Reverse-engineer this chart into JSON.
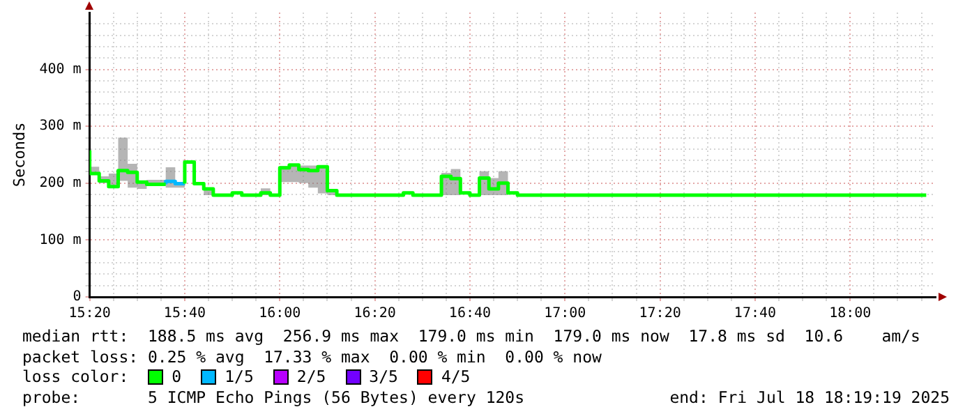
{
  "chart_data": {
    "type": "step",
    "ylabel": "Seconds",
    "x": [
      "2025-07-18T15:20",
      "2025-07-18T15:22",
      "2025-07-18T15:24",
      "2025-07-18T15:26",
      "2025-07-18T15:28",
      "2025-07-18T15:30",
      "2025-07-18T15:32",
      "2025-07-18T15:34",
      "2025-07-18T15:36",
      "2025-07-18T15:38",
      "2025-07-18T15:40",
      "2025-07-18T15:42",
      "2025-07-18T15:44",
      "2025-07-18T15:46",
      "2025-07-18T15:48",
      "2025-07-18T15:50",
      "2025-07-18T15:52",
      "2025-07-18T15:54",
      "2025-07-18T15:56",
      "2025-07-18T15:58",
      "2025-07-18T16:00",
      "2025-07-18T16:02",
      "2025-07-18T16:04",
      "2025-07-18T16:06",
      "2025-07-18T16:08",
      "2025-07-18T16:10",
      "2025-07-18T16:12",
      "2025-07-18T16:14",
      "2025-07-18T16:16",
      "2025-07-18T16:18",
      "2025-07-18T16:20",
      "2025-07-18T16:22",
      "2025-07-18T16:24",
      "2025-07-18T16:26",
      "2025-07-18T16:28",
      "2025-07-18T16:30",
      "2025-07-18T16:32",
      "2025-07-18T16:34",
      "2025-07-18T16:36",
      "2025-07-18T16:38",
      "2025-07-18T16:40",
      "2025-07-18T16:42",
      "2025-07-18T16:44",
      "2025-07-18T16:46",
      "2025-07-18T16:48",
      "2025-07-18T16:50",
      "2025-07-18T16:52",
      "2025-07-18T16:54",
      "2025-07-18T16:56",
      "2025-07-18T16:58",
      "2025-07-18T17:00",
      "2025-07-18T17:02",
      "2025-07-18T17:04",
      "2025-07-18T17:06",
      "2025-07-18T17:08",
      "2025-07-18T17:10",
      "2025-07-18T17:12",
      "2025-07-18T17:14",
      "2025-07-18T17:16",
      "2025-07-18T17:18",
      "2025-07-18T17:20",
      "2025-07-18T17:22",
      "2025-07-18T17:24",
      "2025-07-18T17:26",
      "2025-07-18T17:28",
      "2025-07-18T17:30",
      "2025-07-18T17:32",
      "2025-07-18T17:34",
      "2025-07-18T17:36",
      "2025-07-18T17:38",
      "2025-07-18T17:40",
      "2025-07-18T17:42",
      "2025-07-18T17:44",
      "2025-07-18T17:46",
      "2025-07-18T17:48",
      "2025-07-18T17:50",
      "2025-07-18T17:52",
      "2025-07-18T17:54",
      "2025-07-18T17:56",
      "2025-07-18T17:58",
      "2025-07-18T18:00",
      "2025-07-18T18:02",
      "2025-07-18T18:04",
      "2025-07-18T18:06",
      "2025-07-18T18:08",
      "2025-07-18T18:10",
      "2025-07-18T18:12",
      "2025-07-18T18:14",
      "2025-07-18T18:16"
    ],
    "series": [
      {
        "name": "0",
        "color": "#00ff00",
        "values": [
          258,
          217,
          204,
          194,
          222,
          219,
          202,
          198,
          198,
          null,
          199,
          237,
          199,
          190,
          179,
          179,
          183,
          179,
          179,
          183,
          179,
          227,
          232,
          224,
          222,
          229,
          187,
          179,
          179,
          179,
          179,
          179,
          179,
          179,
          183,
          179,
          179,
          179,
          212,
          208,
          183,
          179,
          209,
          190,
          200,
          183,
          179,
          179,
          179,
          179,
          179,
          179,
          179,
          179,
          179,
          179,
          179,
          179,
          179,
          179,
          179,
          179,
          179,
          179,
          179,
          179,
          179,
          179,
          179,
          179,
          179,
          179,
          179,
          179,
          179,
          179,
          179,
          179,
          179,
          179,
          179,
          179,
          179,
          179,
          179,
          179,
          179,
          179,
          179
        ],
        "lower": [
          240,
          217,
          200,
          192,
          204,
          192,
          190,
          196,
          196,
          192,
          192,
          235,
          196,
          179,
          179,
          179,
          183,
          179,
          179,
          179,
          179,
          202,
          202,
          200,
          192,
          182,
          179,
          179,
          179,
          179,
          179,
          179,
          179,
          179,
          183,
          179,
          179,
          179,
          179,
          179,
          183,
          179,
          179,
          179,
          179,
          183,
          179,
          179,
          179,
          179,
          179,
          179,
          179,
          179,
          179,
          179,
          179,
          179,
          179,
          179,
          179,
          179,
          179,
          179,
          179,
          179,
          179,
          179,
          179,
          179,
          179,
          179,
          179,
          179,
          179,
          179,
          179,
          179,
          179,
          179,
          179,
          179,
          179,
          179,
          179,
          179,
          179,
          179,
          179
        ],
        "upper": [
          285,
          229,
          212,
          217,
          280,
          234,
          204,
          206,
          206,
          228,
          202,
          238,
          200,
          192,
          179,
          179,
          183,
          179,
          179,
          191,
          179,
          230,
          233,
          231,
          231,
          231,
          188,
          179,
          179,
          179,
          179,
          179,
          179,
          179,
          183,
          179,
          179,
          179,
          218,
          225,
          183,
          179,
          221,
          209,
          221,
          183,
          179,
          179,
          179,
          179,
          179,
          179,
          179,
          179,
          179,
          179,
          179,
          179,
          179,
          179,
          179,
          179,
          179,
          179,
          179,
          179,
          179,
          179,
          179,
          179,
          179,
          179,
          179,
          179,
          179,
          179,
          179,
          179,
          179,
          179,
          179,
          179,
          179,
          179,
          179,
          179,
          179,
          179,
          179
        ]
      },
      {
        "name": "1/5",
        "color": "#00b8ff",
        "values": [
          null,
          null,
          null,
          null,
          null,
          null,
          null,
          null,
          198,
          203,
          199,
          null,
          null,
          null,
          null,
          null,
          null,
          null,
          null,
          null,
          null,
          null,
          null,
          null,
          null,
          null,
          null,
          null,
          null,
          null,
          null,
          null,
          null,
          null,
          null,
          null,
          null,
          null,
          null,
          null,
          null,
          null,
          null,
          null,
          null,
          null,
          null,
          null,
          null,
          null,
          null,
          null,
          null,
          null,
          null,
          null,
          null,
          null,
          null,
          null,
          null,
          null,
          null,
          null,
          null,
          null,
          null,
          null,
          null,
          null,
          null,
          null,
          null,
          null,
          null,
          null,
          null,
          null,
          null,
          null,
          null,
          null,
          null,
          null,
          null,
          null,
          null,
          null,
          null
        ]
      },
      {
        "name": "2/5",
        "color": "#b800ff",
        "values": [
          null,
          null,
          null,
          null,
          null,
          null,
          null,
          null,
          null,
          null,
          null,
          null,
          null,
          null,
          null,
          null,
          null,
          null,
          null,
          null,
          null,
          null,
          null,
          null,
          null,
          null,
          null,
          null,
          null,
          null,
          null,
          null,
          null,
          null,
          null,
          null,
          null,
          null,
          null,
          null,
          null,
          null,
          null,
          null,
          null,
          null,
          null,
          null,
          null,
          null,
          null,
          null,
          null,
          null,
          null,
          null,
          null,
          null,
          null,
          null,
          null,
          null,
          null,
          null,
          null,
          null,
          null,
          null,
          null,
          null,
          null,
          null,
          null,
          null,
          null,
          null,
          null,
          null,
          null,
          null,
          null,
          null,
          null,
          null,
          null,
          null,
          null,
          null,
          null
        ]
      },
      {
        "name": "3/5",
        "color": "#7200ff",
        "values": [
          null,
          null,
          null,
          null,
          null,
          null,
          null,
          null,
          null,
          null,
          null,
          null,
          null,
          null,
          null,
          null,
          null,
          null,
          null,
          null,
          null,
          null,
          null,
          null,
          null,
          null,
          null,
          null,
          null,
          null,
          null,
          null,
          null,
          null,
          null,
          null,
          null,
          null,
          null,
          null,
          null,
          null,
          null,
          null,
          null,
          null,
          null,
          null,
          null,
          null,
          null,
          null,
          null,
          null,
          null,
          null,
          null,
          null,
          null,
          null,
          null,
          null,
          null,
          null,
          null,
          null,
          null,
          null,
          null,
          null,
          null,
          null,
          null,
          null,
          null,
          null,
          null,
          null,
          null,
          null,
          null,
          null,
          null,
          null,
          null,
          null,
          null,
          null,
          null
        ]
      },
      {
        "name": "4/5",
        "color": "#ff0000",
        "values": [
          null,
          null,
          null,
          null,
          null,
          null,
          null,
          null,
          null,
          null,
          null,
          null,
          null,
          null,
          null,
          null,
          null,
          null,
          null,
          null,
          null,
          null,
          null,
          null,
          null,
          null,
          null,
          null,
          null,
          null,
          null,
          null,
          null,
          null,
          null,
          null,
          null,
          null,
          null,
          null,
          null,
          null,
          null,
          null,
          null,
          null,
          null,
          null,
          null,
          null,
          null,
          null,
          null,
          null,
          null,
          null,
          null,
          null,
          null,
          null,
          null,
          null,
          null,
          null,
          null,
          null,
          null,
          null,
          null,
          null,
          null,
          null,
          null,
          null,
          null,
          null,
          null,
          null,
          null,
          null,
          null,
          null,
          null,
          null,
          null,
          null,
          null,
          null,
          null
        ]
      }
    ],
    "xlim": [
      "2025-07-18T15:20",
      "2025-07-18T18:18"
    ],
    "xticks": [
      {
        "value": "2025-07-18T15:20",
        "label": "15:20"
      },
      {
        "value": "2025-07-18T15:25",
        "label": null
      },
      {
        "value": "2025-07-18T15:30",
        "label": null
      },
      {
        "value": "2025-07-18T15:35",
        "label": null
      },
      {
        "value": "2025-07-18T15:40",
        "label": "15:40"
      },
      {
        "value": "2025-07-18T15:45",
        "label": null
      },
      {
        "value": "2025-07-18T15:50",
        "label": null
      },
      {
        "value": "2025-07-18T15:55",
        "label": null
      },
      {
        "value": "2025-07-18T16:00",
        "label": "16:00"
      },
      {
        "value": "2025-07-18T16:05",
        "label": null
      },
      {
        "value": "2025-07-18T16:10",
        "label": null
      },
      {
        "value": "2025-07-18T16:15",
        "label": null
      },
      {
        "value": "2025-07-18T16:20",
        "label": "16:20"
      },
      {
        "value": "2025-07-18T16:25",
        "label": null
      },
      {
        "value": "2025-07-18T16:30",
        "label": null
      },
      {
        "value": "2025-07-18T16:35",
        "label": null
      },
      {
        "value": "2025-07-18T16:40",
        "label": "16:40"
      },
      {
        "value": "2025-07-18T16:45",
        "label": null
      },
      {
        "value": "2025-07-18T16:50",
        "label": null
      },
      {
        "value": "2025-07-18T16:55",
        "label": null
      },
      {
        "value": "2025-07-18T17:00",
        "label": "17:00"
      },
      {
        "value": "2025-07-18T17:05",
        "label": null
      },
      {
        "value": "2025-07-18T17:10",
        "label": null
      },
      {
        "value": "2025-07-18T17:15",
        "label": null
      },
      {
        "value": "2025-07-18T17:20",
        "label": "17:20"
      },
      {
        "value": "2025-07-18T17:25",
        "label": null
      },
      {
        "value": "2025-07-18T17:30",
        "label": null
      },
      {
        "value": "2025-07-18T17:35",
        "label": null
      },
      {
        "value": "2025-07-18T17:40",
        "label": "17:40"
      },
      {
        "value": "2025-07-18T17:45",
        "label": null
      },
      {
        "value": "2025-07-18T17:50",
        "label": null
      },
      {
        "value": "2025-07-18T17:55",
        "label": null
      },
      {
        "value": "2025-07-18T18:00",
        "label": "18:00"
      },
      {
        "value": "2025-07-18T18:05",
        "label": null
      },
      {
        "value": "2025-07-18T18:10",
        "label": null
      },
      {
        "value": "2025-07-18T18:15",
        "label": null
      }
    ],
    "ylim": [
      0,
      500
    ],
    "yticks": [
      {
        "value": 0,
        "label": "0"
      },
      {
        "value": 20,
        "label": null
      },
      {
        "value": 40,
        "label": null
      },
      {
        "value": 60,
        "label": null
      },
      {
        "value": 80,
        "label": null
      },
      {
        "value": 100,
        "label": "100 m"
      },
      {
        "value": 120,
        "label": null
      },
      {
        "value": 140,
        "label": null
      },
      {
        "value": 160,
        "label": null
      },
      {
        "value": 180,
        "label": null
      },
      {
        "value": 200,
        "label": "200 m"
      },
      {
        "value": 220,
        "label": null
      },
      {
        "value": 240,
        "label": null
      },
      {
        "value": 260,
        "label": null
      },
      {
        "value": 280,
        "label": null
      },
      {
        "value": 300,
        "label": "300 m"
      },
      {
        "value": 320,
        "label": null
      },
      {
        "value": 340,
        "label": null
      },
      {
        "value": 360,
        "label": null
      },
      {
        "value": 380,
        "label": null
      },
      {
        "value": 400,
        "label": "400 m"
      },
      {
        "value": 420,
        "label": null
      },
      {
        "value": 440,
        "label": null
      },
      {
        "value": 460,
        "label": null
      },
      {
        "value": 480,
        "label": null
      }
    ],
    "grid": true,
    "legend": "bottom",
    "legend_title": "loss color:",
    "annotations": [
      "median rtt:  188.5 ms avg  256.9 ms max  179.0 ms min  179.0 ms now  17.8 ms sd  10.6    am/s",
      "packet loss: 0.25 % avg  17.33 % max  0.00 % min  0.00 % now",
      "probe:       5 ICMP Echo Pings (56 Bytes) every 120s",
      "end: Fri Jul 18 18:19:19 2025"
    ]
  }
}
